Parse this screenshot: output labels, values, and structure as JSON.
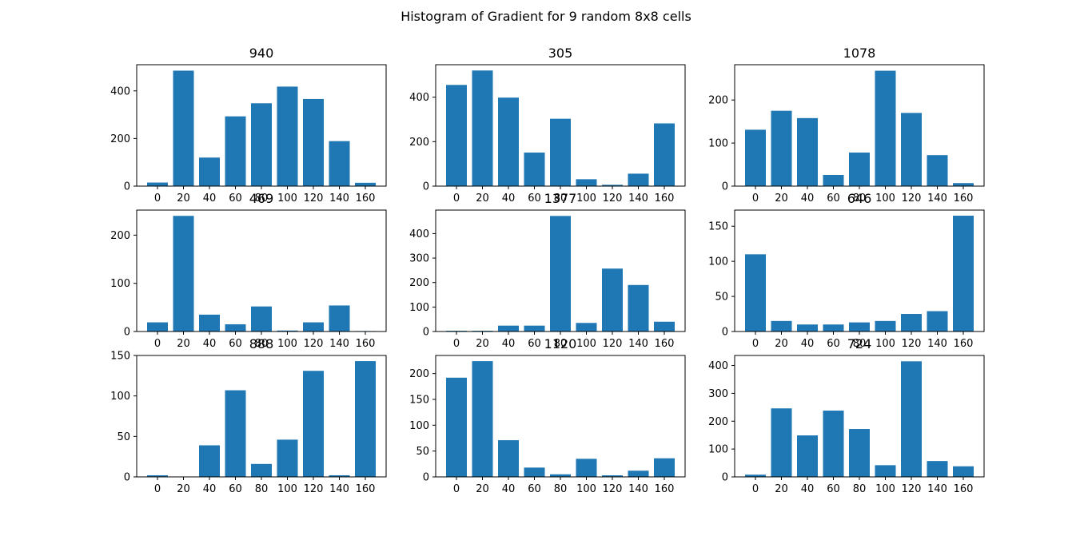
{
  "figure": {
    "suptitle": "Histogram of Gradient for 9 random 8x8 cells",
    "bar_color": "#1f77b4",
    "background": "#ffffff"
  },
  "chart_data": [
    {
      "type": "bar",
      "title": "940",
      "categories": [
        "0",
        "20",
        "40",
        "60",
        "80",
        "100",
        "120",
        "140",
        "160"
      ],
      "values": [
        15,
        485,
        120,
        293,
        348,
        418,
        366,
        189,
        14
      ],
      "ylim": [
        0,
        510
      ],
      "yticks": [
        0,
        200,
        400
      ]
    },
    {
      "type": "bar",
      "title": "305",
      "categories": [
        "0",
        "20",
        "40",
        "60",
        "80",
        "100",
        "120",
        "140",
        "160"
      ],
      "values": [
        455,
        520,
        398,
        151,
        303,
        31,
        6,
        56,
        282
      ],
      "ylim": [
        0,
        546
      ],
      "yticks": [
        0,
        200,
        400
      ]
    },
    {
      "type": "bar",
      "title": "1078",
      "categories": [
        "0",
        "20",
        "40",
        "60",
        "80",
        "100",
        "120",
        "140",
        "160"
      ],
      "values": [
        131,
        175,
        158,
        26,
        78,
        268,
        170,
        72,
        7
      ],
      "ylim": [
        0,
        282
      ],
      "yticks": [
        0,
        100,
        200
      ]
    },
    {
      "type": "bar",
      "title": "469",
      "categories": [
        "0",
        "20",
        "40",
        "60",
        "80",
        "100",
        "120",
        "140",
        "160"
      ],
      "values": [
        19,
        240,
        35,
        15,
        52,
        2,
        19,
        54,
        1
      ],
      "ylim": [
        0,
        252
      ],
      "yticks": [
        0,
        100,
        200
      ]
    },
    {
      "type": "bar",
      "title": "1377",
      "categories": [
        "0",
        "20",
        "40",
        "60",
        "80",
        "100",
        "120",
        "140",
        "160"
      ],
      "values": [
        3,
        3,
        24,
        24,
        472,
        35,
        257,
        190,
        40
      ],
      "ylim": [
        0,
        496
      ],
      "yticks": [
        0,
        100,
        200,
        300,
        400
      ]
    },
    {
      "type": "bar",
      "title": "646",
      "categories": [
        "0",
        "20",
        "40",
        "60",
        "80",
        "100",
        "120",
        "140",
        "160"
      ],
      "values": [
        110,
        15,
        10,
        10,
        13,
        15,
        25,
        29,
        165
      ],
      "ylim": [
        0,
        173
      ],
      "yticks": [
        0,
        50,
        100,
        150
      ]
    },
    {
      "type": "bar",
      "title": "888",
      "categories": [
        "0",
        "20",
        "40",
        "60",
        "80",
        "100",
        "120",
        "140",
        "160"
      ],
      "values": [
        2,
        0,
        39,
        107,
        16,
        46,
        131,
        2,
        143
      ],
      "ylim": [
        0,
        150
      ],
      "yticks": [
        0,
        50,
        100,
        150
      ]
    },
    {
      "type": "bar",
      "title": "1120",
      "categories": [
        "0",
        "20",
        "40",
        "60",
        "80",
        "100",
        "120",
        "140",
        "160"
      ],
      "values": [
        192,
        224,
        71,
        18,
        5,
        35,
        3,
        12,
        36
      ],
      "ylim": [
        0,
        235
      ],
      "yticks": [
        0,
        50,
        100,
        150,
        200
      ]
    },
    {
      "type": "bar",
      "title": "724",
      "categories": [
        "0",
        "20",
        "40",
        "60",
        "80",
        "100",
        "120",
        "140",
        "160"
      ],
      "values": [
        8,
        246,
        149,
        238,
        172,
        42,
        415,
        57,
        38
      ],
      "ylim": [
        0,
        436
      ],
      "yticks": [
        0,
        100,
        200,
        300,
        400
      ]
    }
  ]
}
